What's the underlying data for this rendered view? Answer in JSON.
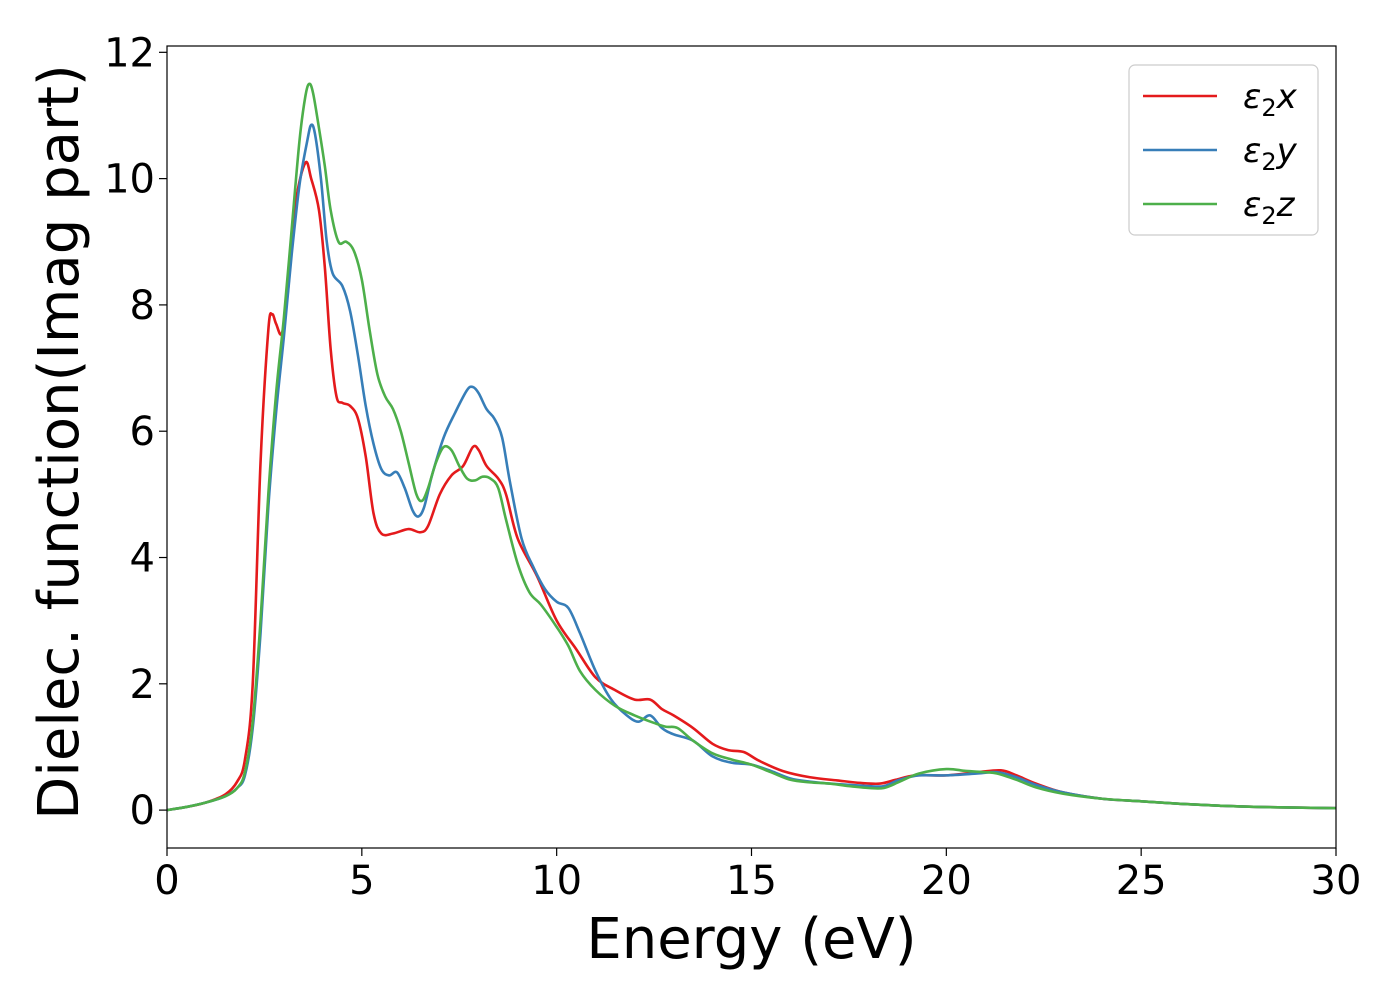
{
  "chart_data": {
    "type": "line",
    "xlabel": "Energy (eV)",
    "ylabel": "Dielec. function(Imag part)",
    "xlim": [
      0,
      30
    ],
    "ylim": [
      -0.6,
      12.1
    ],
    "xticks": [
      0,
      5,
      10,
      15,
      20,
      25,
      30
    ],
    "yticks": [
      0,
      2,
      4,
      6,
      8,
      10,
      12
    ],
    "grid": false,
    "legend_position": "top-right",
    "series": [
      {
        "name": "ε2x",
        "legend": {
          "base": "ε",
          "sub": "2",
          "suffix": "x"
        },
        "color": "#e41a1c",
        "points": [
          [
            0,
            0.0
          ],
          [
            0.5,
            0.05
          ],
          [
            1.0,
            0.12
          ],
          [
            1.5,
            0.25
          ],
          [
            1.8,
            0.45
          ],
          [
            2.0,
            0.8
          ],
          [
            2.2,
            2.0
          ],
          [
            2.4,
            5.5
          ],
          [
            2.6,
            7.6
          ],
          [
            2.7,
            7.85
          ],
          [
            2.8,
            7.7
          ],
          [
            2.95,
            7.55
          ],
          [
            3.1,
            8.2
          ],
          [
            3.3,
            9.6
          ],
          [
            3.55,
            10.25
          ],
          [
            3.7,
            10.0
          ],
          [
            3.9,
            9.5
          ],
          [
            4.05,
            8.6
          ],
          [
            4.2,
            7.3
          ],
          [
            4.35,
            6.55
          ],
          [
            4.5,
            6.45
          ],
          [
            4.7,
            6.4
          ],
          [
            4.9,
            6.2
          ],
          [
            5.1,
            5.6
          ],
          [
            5.3,
            4.7
          ],
          [
            5.5,
            4.38
          ],
          [
            5.8,
            4.38
          ],
          [
            6.2,
            4.45
          ],
          [
            6.5,
            4.4
          ],
          [
            6.7,
            4.5
          ],
          [
            7.0,
            5.0
          ],
          [
            7.3,
            5.3
          ],
          [
            7.6,
            5.45
          ],
          [
            7.85,
            5.75
          ],
          [
            8.0,
            5.7
          ],
          [
            8.2,
            5.45
          ],
          [
            8.5,
            5.25
          ],
          [
            8.7,
            5.0
          ],
          [
            9.0,
            4.3
          ],
          [
            9.5,
            3.7
          ],
          [
            10.0,
            3.0
          ],
          [
            10.5,
            2.55
          ],
          [
            11.0,
            2.1
          ],
          [
            11.5,
            1.9
          ],
          [
            12.0,
            1.75
          ],
          [
            12.4,
            1.75
          ],
          [
            12.7,
            1.6
          ],
          [
            13.0,
            1.5
          ],
          [
            13.5,
            1.3
          ],
          [
            14.0,
            1.05
          ],
          [
            14.4,
            0.95
          ],
          [
            14.8,
            0.92
          ],
          [
            15.2,
            0.78
          ],
          [
            15.8,
            0.62
          ],
          [
            16.5,
            0.52
          ],
          [
            17.2,
            0.47
          ],
          [
            17.8,
            0.43
          ],
          [
            18.3,
            0.42
          ],
          [
            18.7,
            0.48
          ],
          [
            19.2,
            0.55
          ],
          [
            20.0,
            0.55
          ],
          [
            20.8,
            0.6
          ],
          [
            21.4,
            0.63
          ],
          [
            21.8,
            0.55
          ],
          [
            22.3,
            0.42
          ],
          [
            23.0,
            0.28
          ],
          [
            24.0,
            0.18
          ],
          [
            25.0,
            0.14
          ],
          [
            26.0,
            0.1
          ],
          [
            27.0,
            0.07
          ],
          [
            28.0,
            0.05
          ],
          [
            30.0,
            0.03
          ]
        ]
      },
      {
        "name": "ε2y",
        "legend": {
          "base": "ε",
          "sub": "2",
          "suffix": "y"
        },
        "color": "#377eb8",
        "points": [
          [
            0,
            0.0
          ],
          [
            0.5,
            0.05
          ],
          [
            1.0,
            0.12
          ],
          [
            1.5,
            0.22
          ],
          [
            1.8,
            0.35
          ],
          [
            2.0,
            0.55
          ],
          [
            2.2,
            1.3
          ],
          [
            2.4,
            2.8
          ],
          [
            2.6,
            4.8
          ],
          [
            2.8,
            6.3
          ],
          [
            3.0,
            7.5
          ],
          [
            3.2,
            8.8
          ],
          [
            3.4,
            9.9
          ],
          [
            3.6,
            10.6
          ],
          [
            3.7,
            10.85
          ],
          [
            3.8,
            10.7
          ],
          [
            3.95,
            10.0
          ],
          [
            4.1,
            9.0
          ],
          [
            4.25,
            8.5
          ],
          [
            4.5,
            8.3
          ],
          [
            4.7,
            7.9
          ],
          [
            4.9,
            7.2
          ],
          [
            5.1,
            6.4
          ],
          [
            5.3,
            5.8
          ],
          [
            5.5,
            5.4
          ],
          [
            5.7,
            5.3
          ],
          [
            5.9,
            5.35
          ],
          [
            6.1,
            5.1
          ],
          [
            6.3,
            4.75
          ],
          [
            6.45,
            4.65
          ],
          [
            6.6,
            4.8
          ],
          [
            6.8,
            5.3
          ],
          [
            7.1,
            5.9
          ],
          [
            7.4,
            6.3
          ],
          [
            7.7,
            6.65
          ],
          [
            7.85,
            6.7
          ],
          [
            8.0,
            6.6
          ],
          [
            8.2,
            6.35
          ],
          [
            8.4,
            6.2
          ],
          [
            8.6,
            5.9
          ],
          [
            8.8,
            5.2
          ],
          [
            9.1,
            4.3
          ],
          [
            9.4,
            3.85
          ],
          [
            9.7,
            3.5
          ],
          [
            10.0,
            3.3
          ],
          [
            10.3,
            3.2
          ],
          [
            10.6,
            2.8
          ],
          [
            11.0,
            2.2
          ],
          [
            11.4,
            1.75
          ],
          [
            11.8,
            1.5
          ],
          [
            12.1,
            1.4
          ],
          [
            12.4,
            1.5
          ],
          [
            12.7,
            1.3
          ],
          [
            13.0,
            1.2
          ],
          [
            13.5,
            1.1
          ],
          [
            14.0,
            0.85
          ],
          [
            14.5,
            0.75
          ],
          [
            15.0,
            0.72
          ],
          [
            15.5,
            0.62
          ],
          [
            16.0,
            0.5
          ],
          [
            16.5,
            0.45
          ],
          [
            17.0,
            0.42
          ],
          [
            17.5,
            0.4
          ],
          [
            18.0,
            0.38
          ],
          [
            18.4,
            0.38
          ],
          [
            18.8,
            0.48
          ],
          [
            19.3,
            0.55
          ],
          [
            20.0,
            0.55
          ],
          [
            20.8,
            0.58
          ],
          [
            21.3,
            0.6
          ],
          [
            21.8,
            0.52
          ],
          [
            22.3,
            0.4
          ],
          [
            23.0,
            0.28
          ],
          [
            24.0,
            0.18
          ],
          [
            25.0,
            0.14
          ],
          [
            26.0,
            0.1
          ],
          [
            27.0,
            0.07
          ],
          [
            28.0,
            0.05
          ],
          [
            30.0,
            0.03
          ]
        ]
      },
      {
        "name": "ε2z",
        "legend": {
          "base": "ε",
          "sub": "2",
          "suffix": "z"
        },
        "color": "#4daf4a",
        "points": [
          [
            0,
            0.0
          ],
          [
            0.5,
            0.05
          ],
          [
            1.0,
            0.12
          ],
          [
            1.5,
            0.22
          ],
          [
            1.8,
            0.35
          ],
          [
            2.0,
            0.6
          ],
          [
            2.2,
            1.4
          ],
          [
            2.4,
            3.0
          ],
          [
            2.6,
            5.0
          ],
          [
            2.8,
            6.6
          ],
          [
            3.0,
            7.8
          ],
          [
            3.2,
            9.2
          ],
          [
            3.4,
            10.6
          ],
          [
            3.55,
            11.3
          ],
          [
            3.65,
            11.5
          ],
          [
            3.75,
            11.35
          ],
          [
            3.9,
            10.8
          ],
          [
            4.05,
            10.2
          ],
          [
            4.2,
            9.5
          ],
          [
            4.4,
            9.0
          ],
          [
            4.6,
            9.0
          ],
          [
            4.8,
            8.85
          ],
          [
            5.0,
            8.4
          ],
          [
            5.2,
            7.6
          ],
          [
            5.4,
            6.9
          ],
          [
            5.6,
            6.55
          ],
          [
            5.8,
            6.35
          ],
          [
            6.0,
            6.0
          ],
          [
            6.2,
            5.5
          ],
          [
            6.4,
            5.0
          ],
          [
            6.55,
            4.9
          ],
          [
            6.7,
            5.1
          ],
          [
            6.9,
            5.5
          ],
          [
            7.1,
            5.75
          ],
          [
            7.3,
            5.7
          ],
          [
            7.5,
            5.45
          ],
          [
            7.7,
            5.25
          ],
          [
            7.9,
            5.22
          ],
          [
            8.1,
            5.28
          ],
          [
            8.3,
            5.25
          ],
          [
            8.5,
            5.1
          ],
          [
            8.7,
            4.6
          ],
          [
            9.0,
            3.9
          ],
          [
            9.3,
            3.45
          ],
          [
            9.6,
            3.25
          ],
          [
            10.0,
            2.9
          ],
          [
            10.3,
            2.6
          ],
          [
            10.6,
            2.2
          ],
          [
            11.0,
            1.9
          ],
          [
            11.5,
            1.65
          ],
          [
            12.0,
            1.5
          ],
          [
            12.5,
            1.38
          ],
          [
            12.8,
            1.32
          ],
          [
            13.1,
            1.3
          ],
          [
            13.5,
            1.1
          ],
          [
            14.0,
            0.9
          ],
          [
            14.5,
            0.8
          ],
          [
            15.0,
            0.72
          ],
          [
            15.5,
            0.6
          ],
          [
            16.0,
            0.48
          ],
          [
            16.5,
            0.44
          ],
          [
            17.0,
            0.42
          ],
          [
            17.5,
            0.38
          ],
          [
            18.0,
            0.35
          ],
          [
            18.4,
            0.35
          ],
          [
            18.8,
            0.45
          ],
          [
            19.3,
            0.58
          ],
          [
            20.0,
            0.65
          ],
          [
            20.5,
            0.62
          ],
          [
            21.0,
            0.6
          ],
          [
            21.3,
            0.58
          ],
          [
            21.8,
            0.48
          ],
          [
            22.3,
            0.36
          ],
          [
            23.0,
            0.26
          ],
          [
            24.0,
            0.18
          ],
          [
            25.0,
            0.14
          ],
          [
            26.0,
            0.1
          ],
          [
            27.0,
            0.07
          ],
          [
            28.0,
            0.05
          ],
          [
            30.0,
            0.03
          ]
        ]
      }
    ]
  }
}
